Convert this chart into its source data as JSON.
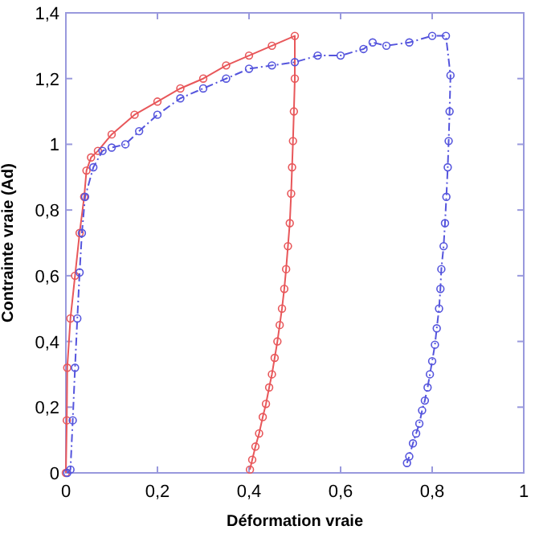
{
  "chart_data": {
    "type": "line",
    "xlabel": "Déformation vraie",
    "ylabel": "Contrainte vraie (Ad)",
    "xlim": [
      0,
      1
    ],
    "ylim": [
      0,
      1.4
    ],
    "xticks": [
      0,
      {
        "value": 0.2,
        "label": "0,2"
      },
      {
        "value": 0.4,
        "label": "0,4"
      },
      {
        "value": 0.6,
        "label": "0,6"
      },
      {
        "value": 0.8,
        "label": "0,8"
      },
      1
    ],
    "yticks": [
      0,
      {
        "value": 0.2,
        "label": "0,2"
      },
      {
        "value": 0.4,
        "label": "0,4"
      },
      {
        "value": 0.6,
        "label": "0,6"
      },
      {
        "value": 0.8,
        "label": "0,8"
      },
      1,
      {
        "value": 1.2,
        "label": "1,2"
      },
      {
        "value": 1.4,
        "label": "1,4"
      }
    ],
    "grid": false,
    "marker": "circle",
    "series": [
      {
        "color": "#e8575a",
        "line_style": "solid",
        "x": [
          0,
          0.002,
          0.003,
          0.01,
          0.02,
          0.03,
          0.04,
          0.045,
          0.055,
          0.07,
          0.1,
          0.15,
          0.2,
          0.25,
          0.3,
          0.35,
          0.4,
          0.45,
          0.5,
          0.5,
          0.498,
          0.496,
          0.494,
          0.492,
          0.489,
          0.485,
          0.481,
          0.477,
          0.472,
          0.467,
          0.462,
          0.456,
          0.45,
          0.444,
          0.437,
          0.43,
          0.422,
          0.414,
          0.407,
          0.402
        ],
        "values": [
          0,
          0.16,
          0.32,
          0.47,
          0.6,
          0.73,
          0.84,
          0.92,
          0.96,
          0.98,
          1.03,
          1.09,
          1.13,
          1.17,
          1.2,
          1.24,
          1.27,
          1.3,
          1.33,
          1.2,
          1.1,
          1.01,
          0.93,
          0.85,
          0.76,
          0.69,
          0.62,
          0.56,
          0.5,
          0.45,
          0.4,
          0.35,
          0.3,
          0.26,
          0.21,
          0.17,
          0.12,
          0.08,
          0.04,
          0.01
        ]
      },
      {
        "color": "#5555dd",
        "line_style": "dashed",
        "x": [
          0.003,
          0.01,
          0.015,
          0.02,
          0.025,
          0.03,
          0.035,
          0.042,
          0.06,
          0.08,
          0.1,
          0.13,
          0.16,
          0.2,
          0.25,
          0.3,
          0.35,
          0.4,
          0.45,
          0.5,
          0.55,
          0.6,
          0.65,
          0.67,
          0.7,
          0.75,
          0.8,
          0.83,
          0.84,
          0.838,
          0.836,
          0.834,
          0.831,
          0.828,
          0.825,
          0.82,
          0.818,
          0.815,
          0.81,
          0.806,
          0.8,
          0.795,
          0.79,
          0.784,
          0.778,
          0.772,
          0.765,
          0.758,
          0.75,
          0.745
        ],
        "values": [
          0,
          0.01,
          0.16,
          0.32,
          0.47,
          0.61,
          0.73,
          0.84,
          0.93,
          0.98,
          0.99,
          1.0,
          1.04,
          1.09,
          1.14,
          1.17,
          1.2,
          1.23,
          1.24,
          1.25,
          1.27,
          1.27,
          1.29,
          1.31,
          1.3,
          1.31,
          1.33,
          1.33,
          1.21,
          1.1,
          1.01,
          0.93,
          0.84,
          0.76,
          0.69,
          0.62,
          0.56,
          0.5,
          0.44,
          0.39,
          0.34,
          0.3,
          0.26,
          0.22,
          0.19,
          0.15,
          0.12,
          0.09,
          0.05,
          0.03
        ]
      }
    ]
  }
}
